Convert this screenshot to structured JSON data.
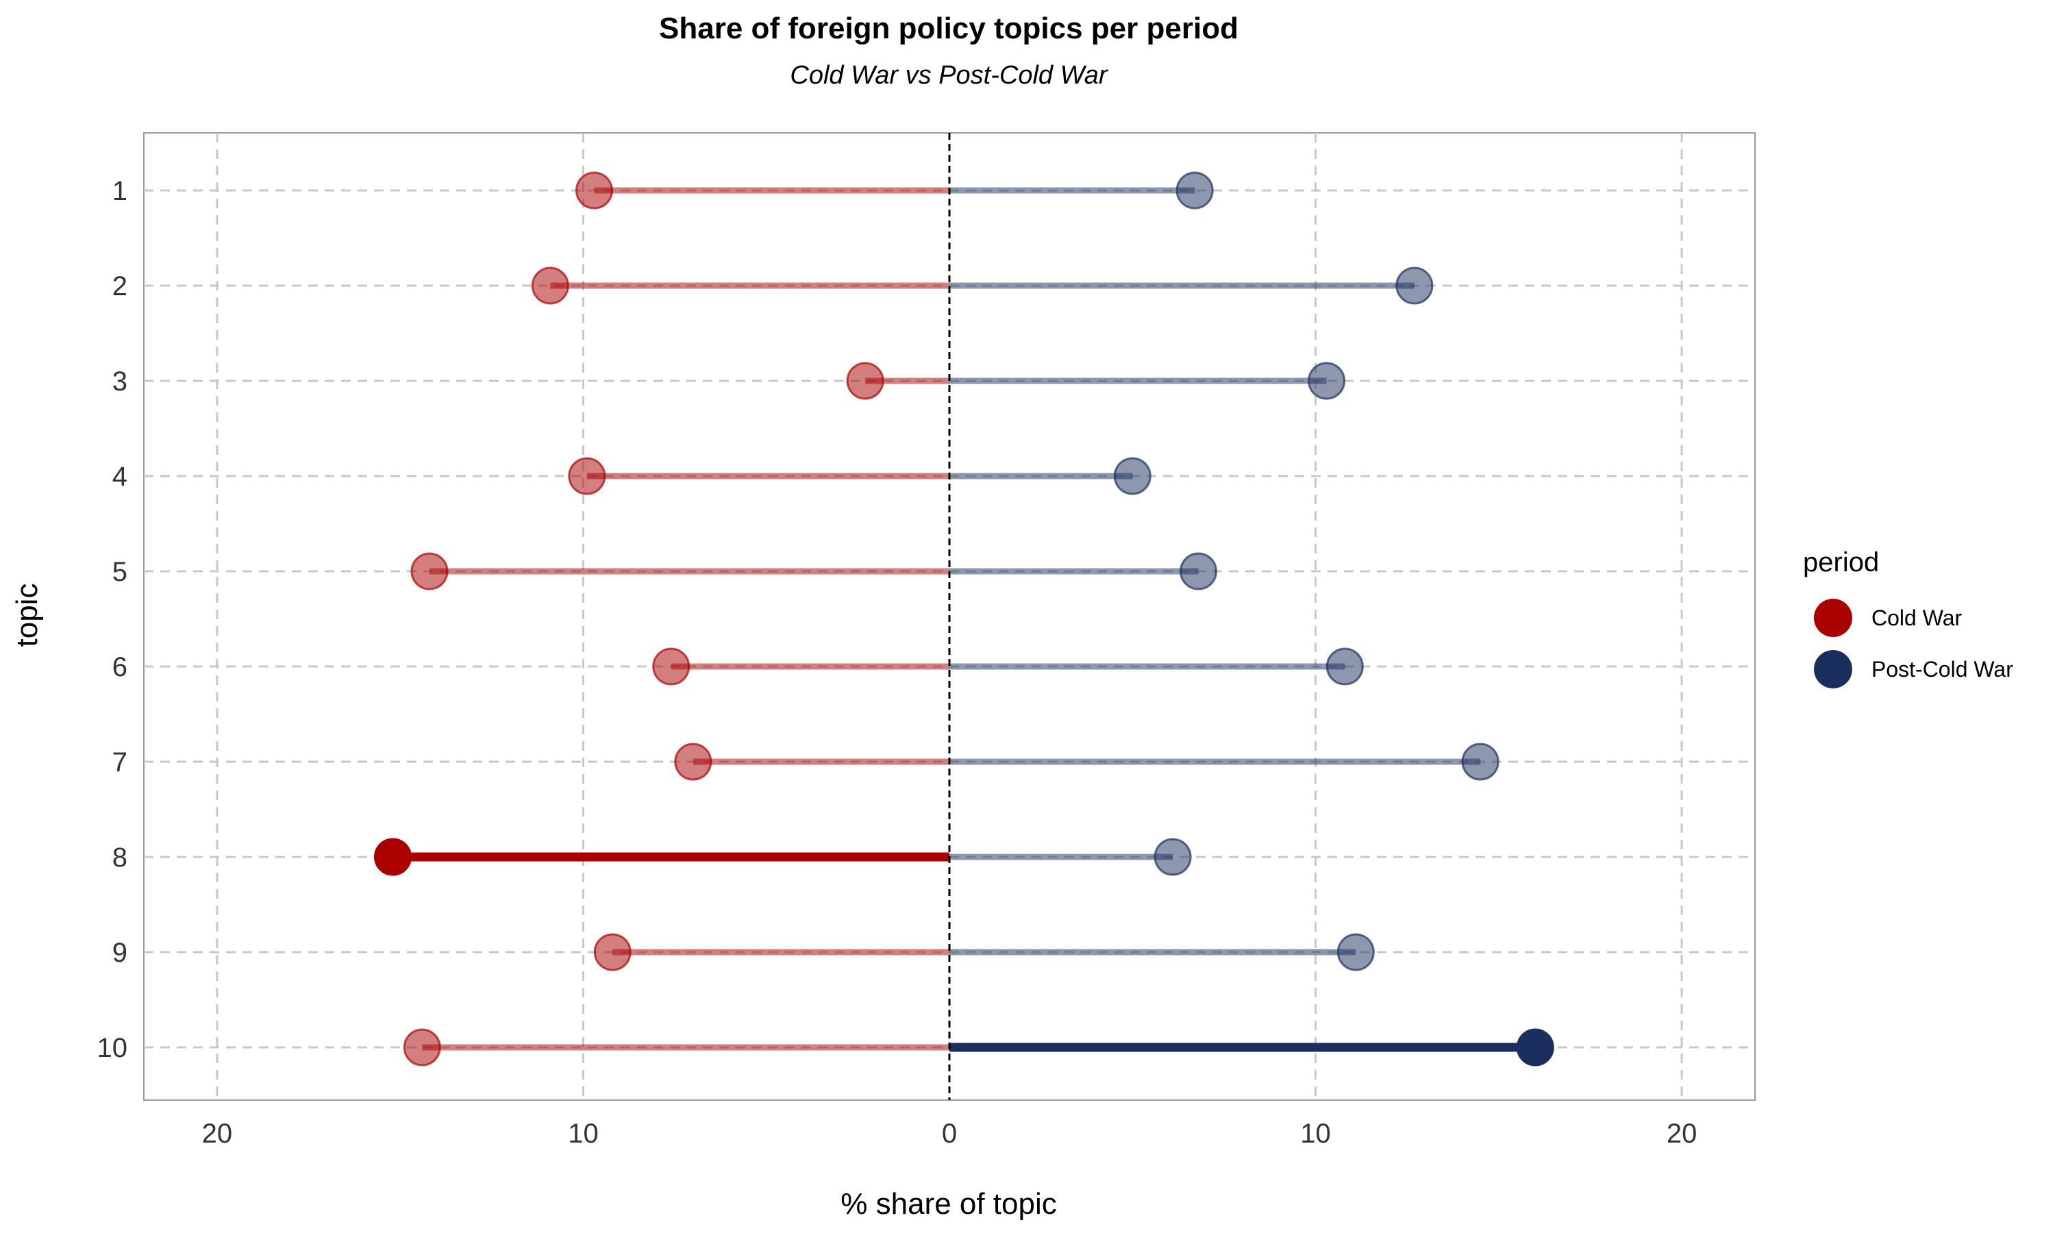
{
  "chart_data": {
    "type": "dumbbell",
    "title": "Share of foreign policy topics per period",
    "subtitle": "Cold War vs Post-Cold War",
    "xlabel": "% share of topic",
    "ylabel": "topic",
    "xlim": [
      -22,
      22
    ],
    "xticks": [
      -20,
      -10,
      0,
      10,
      20
    ],
    "xtick_labels": [
      "20",
      "10",
      "0",
      "10",
      "20"
    ],
    "categories": [
      "1",
      "2",
      "3",
      "4",
      "5",
      "6",
      "7",
      "8",
      "9",
      "10"
    ],
    "series": [
      {
        "name": "Cold War",
        "color": "#AA0000",
        "side": "left",
        "values": [
          9.7,
          10.9,
          2.3,
          9.9,
          14.2,
          7.6,
          7.0,
          15.2,
          9.2,
          14.4
        ],
        "highlighted": [
          "8"
        ]
      },
      {
        "name": "Post-Cold War",
        "color": "#1B2F5E",
        "side": "right",
        "values": [
          6.7,
          12.7,
          10.3,
          5.0,
          6.8,
          10.8,
          14.5,
          6.1,
          11.1,
          16.0
        ],
        "highlighted": [
          "10"
        ]
      }
    ],
    "legend": {
      "title": "period",
      "position": "right",
      "items": [
        "Cold War",
        "Post-Cold War"
      ]
    },
    "grid": true
  }
}
